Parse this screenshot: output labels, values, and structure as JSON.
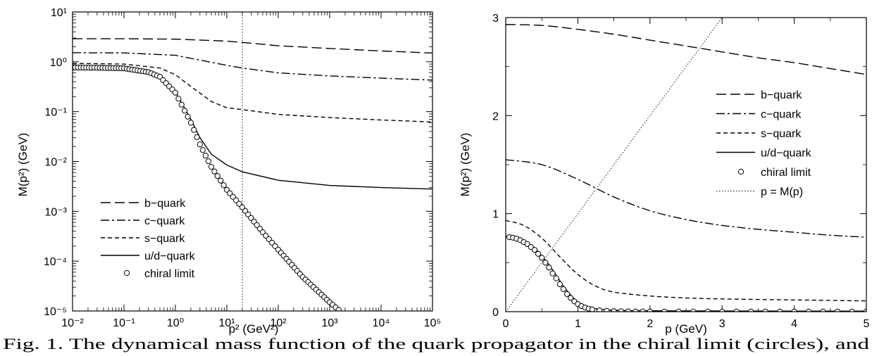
{
  "caption": "Fig. 1. The dynamical mass function of the quark propagator in the chiral limit (circles), and",
  "chart_data": [
    {
      "type": "line",
      "xscale": "log",
      "yscale": "log",
      "xlim": [
        0.01,
        100000
      ],
      "ylim": [
        1e-05,
        10
      ],
      "xlabel": "p² (GeV²)",
      "ylabel": "M(p²) (GeV)",
      "x_ticks": [
        "10⁻²",
        "10⁻¹",
        "10⁰",
        "10¹",
        "10²",
        "10³",
        "10⁴",
        "10⁵"
      ],
      "y_ticks": [
        "10⁻⁵",
        "10⁻⁴",
        "10⁻³",
        "10⁻²",
        "10⁻¹",
        "10⁰",
        "10¹"
      ],
      "legend_position": "bottom-left",
      "vline": {
        "x": 20,
        "style": "dotted"
      },
      "series": [
        {
          "name": "b−quark",
          "style": "long-dash",
          "x": [
            0.01,
            0.1,
            1,
            10,
            20,
            100,
            1000,
            10000,
            100000
          ],
          "y": [
            2.9,
            2.9,
            2.85,
            2.6,
            2.45,
            2.1,
            1.85,
            1.65,
            1.5
          ]
        },
        {
          "name": "c−quark",
          "style": "dash-dot",
          "x": [
            0.01,
            0.1,
            1,
            10,
            20,
            100,
            1000,
            10000,
            100000
          ],
          "y": [
            1.52,
            1.51,
            1.35,
            0.85,
            0.75,
            0.6,
            0.52,
            0.47,
            0.43
          ]
        },
        {
          "name": "s−quark",
          "style": "short-dash",
          "x": [
            0.01,
            0.1,
            0.5,
            1,
            2,
            5,
            10,
            20,
            100,
            1000,
            10000,
            100000
          ],
          "y": [
            0.93,
            0.9,
            0.75,
            0.55,
            0.32,
            0.16,
            0.12,
            0.11,
            0.088,
            0.076,
            0.068,
            0.062
          ]
        },
        {
          "name": "u/d−quark",
          "style": "solid",
          "x": [
            0.01,
            0.1,
            0.5,
            1,
            2,
            3,
            5,
            10,
            20,
            100,
            1000,
            10000,
            100000
          ],
          "y": [
            0.77,
            0.74,
            0.5,
            0.25,
            0.07,
            0.03,
            0.014,
            0.0085,
            0.0062,
            0.0042,
            0.0033,
            0.003,
            0.0028
          ]
        },
        {
          "name": "chiral limit",
          "style": "circles",
          "x": [
            0.01,
            0.03,
            0.1,
            0.3,
            0.5,
            1,
            2,
            3,
            5,
            10,
            20,
            50,
            100,
            300,
            1000,
            1500
          ],
          "y": [
            0.77,
            0.76,
            0.74,
            0.62,
            0.5,
            0.24,
            0.06,
            0.022,
            0.0078,
            0.0027,
            0.0012,
            0.00038,
            0.00017,
            4.8e-05,
            1.5e-05,
            1.05e-05
          ]
        }
      ]
    },
    {
      "type": "line",
      "xlim": [
        0,
        5
      ],
      "ylim": [
        0,
        3
      ],
      "xlabel": "p (GeV)",
      "ylabel": "M(p²) (GeV)",
      "x_ticks": [
        "0",
        "1",
        "2",
        "3",
        "4",
        "5"
      ],
      "y_ticks": [
        "0",
        "1",
        "2",
        "3"
      ],
      "legend_position": "right",
      "series": [
        {
          "name": "b−quark",
          "style": "long-dash",
          "x": [
            0,
            0.5,
            1,
            1.5,
            2,
            2.5,
            3,
            3.5,
            4,
            4.5,
            5
          ],
          "y": [
            2.93,
            2.92,
            2.88,
            2.83,
            2.77,
            2.71,
            2.65,
            2.59,
            2.54,
            2.48,
            2.42
          ]
        },
        {
          "name": "c−quark",
          "style": "dash-dot",
          "x": [
            0,
            0.5,
            1,
            1.5,
            2,
            2.5,
            3,
            3.5,
            4,
            4.5,
            5
          ],
          "y": [
            1.55,
            1.5,
            1.35,
            1.17,
            1.03,
            0.94,
            0.88,
            0.84,
            0.81,
            0.78,
            0.76
          ]
        },
        {
          "name": "s−quark",
          "style": "short-dash",
          "x": [
            0,
            0.25,
            0.5,
            0.75,
            1,
            1.25,
            1.5,
            2,
            2.5,
            3,
            4,
            5
          ],
          "y": [
            0.93,
            0.88,
            0.75,
            0.56,
            0.38,
            0.26,
            0.2,
            0.16,
            0.14,
            0.13,
            0.12,
            0.11
          ]
        },
        {
          "name": "u/d−quark",
          "style": "solid",
          "x": [
            0,
            0.1,
            0.2,
            0.3,
            0.4,
            0.5,
            0.6,
            0.7,
            0.8,
            0.9,
            1,
            1.1,
            1.2,
            1.4,
            1.7,
            2,
            3,
            4,
            5
          ],
          "y": [
            0.77,
            0.76,
            0.74,
            0.7,
            0.65,
            0.57,
            0.48,
            0.37,
            0.26,
            0.17,
            0.1,
            0.06,
            0.035,
            0.018,
            0.011,
            0.009,
            0.007,
            0.006,
            0.006
          ]
        },
        {
          "name": "chiral limit",
          "style": "circles",
          "x": [
            0.05,
            0.1,
            0.15,
            0.2,
            0.25,
            0.3,
            0.35,
            0.4,
            0.45,
            0.5,
            0.55,
            0.6,
            0.65,
            0.7,
            0.75,
            0.8,
            0.85,
            0.9,
            0.95,
            1.0,
            1.05,
            1.1,
            1.15,
            1.2,
            1.3,
            1.4,
            1.5,
            1.6,
            1.7,
            1.8,
            1.9,
            2.0,
            2.2,
            2.4,
            2.6,
            2.8,
            3.0,
            3.2,
            3.4,
            3.6,
            3.8,
            4.0,
            4.2,
            4.4,
            4.6,
            4.8,
            5.0
          ],
          "y": [
            0.76,
            0.755,
            0.745,
            0.73,
            0.71,
            0.69,
            0.66,
            0.63,
            0.59,
            0.55,
            0.5,
            0.45,
            0.39,
            0.34,
            0.28,
            0.23,
            0.18,
            0.14,
            0.105,
            0.078,
            0.057,
            0.042,
            0.031,
            0.023,
            0.013,
            0.008,
            0.005,
            0.004,
            0.003,
            0.002,
            0.002,
            0.001,
            0.001,
            0.001,
            0.001,
            0.001,
            0.001,
            0.001,
            0.001,
            0.001,
            0.001,
            0.001,
            0.001,
            0.001,
            0.001,
            0.001,
            0.001
          ]
        },
        {
          "name": "p = M(p)",
          "style": "dotted",
          "x": [
            0,
            3.05
          ],
          "y": [
            0,
            3.05
          ]
        }
      ]
    }
  ]
}
